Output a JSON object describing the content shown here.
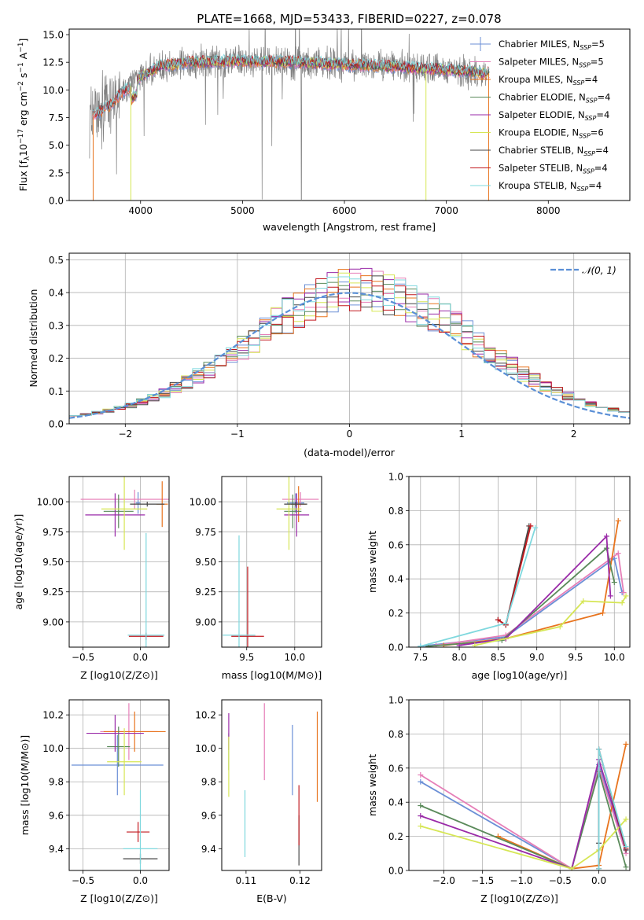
{
  "figure_title": "PLATE=1668, MJD=53433, FIBERID=0227, z=0.078",
  "colors": {
    "Chabrier MILES": "#6b8fd6",
    "Salpeter MILES": "#e67fb8",
    "Kroupa MILES": "#e8741e",
    "Chabrier ELODIE": "#5a8a5a",
    "Salpeter ELODIE": "#9a2aa8",
    "Kroupa ELODIE": "#d6e655",
    "Chabrier STELIB": "#444444",
    "Salpeter STELIB": "#c2181e",
    "Kroupa STELIB": "#7fd8de",
    "data": "#808080",
    "gauss": "#5a8fd6"
  },
  "chart_data": [
    {
      "id": "spectrum",
      "type": "line",
      "xlabel": "wavelength [Angstrom, rest frame]",
      "ylabel": "Flux [f_λ 10^−17 erg cm^−2 s^−1 A^−1]",
      "xlim": [
        3300,
        8800
      ],
      "ylim": [
        0,
        15.5
      ],
      "xticks": [
        4000,
        5000,
        6000,
        7000,
        8000
      ],
      "yticks": [
        0.0,
        2.5,
        5.0,
        7.5,
        10.0,
        12.5,
        15.0
      ],
      "ytick_labels": [
        "0.0",
        "2.5",
        "5.0",
        "7.5",
        "10.0",
        "12.5",
        "15.0"
      ],
      "legend_placement": "upper right",
      "legend": [
        {
          "ssp": "Chabrier MILES",
          "n": "5"
        },
        {
          "ssp": "Salpeter MILES",
          "n": "5"
        },
        {
          "ssp": "Kroupa MILES",
          "n": "4"
        },
        {
          "ssp": "Chabrier ELODIE",
          "n": "4"
        },
        {
          "ssp": "Salpeter ELODIE",
          "n": "4"
        },
        {
          "ssp": "Kroupa ELODIE",
          "n": "6"
        },
        {
          "ssp": "Chabrier STELIB",
          "n": "4"
        },
        {
          "ssp": "Salpeter STELIB",
          "n": "4"
        },
        {
          "ssp": "Kroupa STELIB",
          "n": "4"
        }
      ],
      "data_envelope": [
        [
          3500,
          7.4
        ],
        [
          3600,
          8.0
        ],
        [
          3700,
          8.6
        ],
        [
          3800,
          9.6
        ],
        [
          3900,
          10.3
        ],
        [
          4000,
          11.2
        ],
        [
          4200,
          12.2
        ],
        [
          4500,
          12.5
        ],
        [
          5000,
          12.6
        ],
        [
          5500,
          12.5
        ],
        [
          6000,
          12.3
        ],
        [
          6500,
          12.1
        ],
        [
          7000,
          11.8
        ],
        [
          7400,
          11.5
        ]
      ]
    },
    {
      "id": "residuals",
      "type": "step",
      "xlabel": "(data-model)/error",
      "ylabel": "Normed distribution",
      "xlim": [
        -2.5,
        2.5
      ],
      "ylim": [
        0,
        0.52
      ],
      "grid": true,
      "xticks": [
        -2,
        -1,
        0,
        1,
        2
      ],
      "xtick_labels": [
        "−2",
        "−1",
        "0",
        "1",
        "2"
      ],
      "yticks": [
        0.0,
        0.1,
        0.2,
        0.3,
        0.4,
        0.5
      ],
      "ytick_labels": [
        "0.0",
        "0.1",
        "0.2",
        "0.3",
        "0.4",
        "0.5"
      ],
      "legend": [
        {
          "label": "𝒩(0, 1)"
        }
      ],
      "legend_placement": "upper right",
      "bin_width": 0.1
    },
    {
      "id": "age_vs_Z",
      "type": "errorbar",
      "xlabel": "Z [log10(Z/Z⊙)]",
      "ylabel": "age  [log10(age/yr)]",
      "xlim": [
        -0.62,
        0.25
      ],
      "ylim": [
        8.79,
        10.21
      ],
      "grid": true,
      "xticks": [
        -0.5,
        0.0
      ],
      "xtick_labels": [
        "−0.5",
        "0.0"
      ],
      "yticks": [
        9.0,
        9.25,
        9.5,
        9.75,
        10.0
      ],
      "ytick_labels": [
        "9.00",
        "9.25",
        "9.50",
        "9.75",
        "10.00"
      ],
      "points": [
        {
          "ssp": "Chabrier MILES",
          "x": -0.02,
          "xerr": 0.02,
          "y": 9.99,
          "yerr": 0.09
        },
        {
          "ssp": "Salpeter MILES",
          "x": -0.05,
          "xerr": 0.47,
          "y": 10.02,
          "yerr": 0.08
        },
        {
          "ssp": "Kroupa MILES",
          "x": 0.19,
          "xerr": 0.05,
          "y": 9.98,
          "yerr": 0.19
        },
        {
          "ssp": "Chabrier ELODIE",
          "x": -0.19,
          "xerr": 0.13,
          "y": 9.92,
          "yerr": 0.14
        },
        {
          "ssp": "Salpeter ELODIE",
          "x": -0.22,
          "xerr": 0.26,
          "y": 9.89,
          "yerr": 0.18
        },
        {
          "ssp": "Kroupa ELODIE",
          "x": -0.14,
          "xerr": 0.2,
          "y": 9.94,
          "yerr": 0.34
        },
        {
          "ssp": "Chabrier STELIB",
          "x": 0.06,
          "xerr": 0.15,
          "y": 9.98,
          "yerr": 0.02
        },
        {
          "ssp": "Salpeter STELIB",
          "x": 0.05,
          "xerr": 0.15,
          "y": 8.88,
          "yerr": 0.03
        },
        {
          "ssp": "Kroupa STELIB",
          "x": 0.05,
          "xerr": 0.16,
          "y": 8.89,
          "yerr": 0.85
        }
      ]
    },
    {
      "id": "age_vs_mass",
      "type": "errorbar",
      "xlabel": "mass [log10(M/M⊙)]",
      "ylabel": "",
      "xlim": [
        9.24,
        10.28
      ],
      "ylim": [
        8.79,
        10.21
      ],
      "grid": true,
      "xticks": [
        9.5,
        10.0
      ],
      "xtick_labels": [
        "9.5",
        "10.0"
      ],
      "yticks": [
        9.0,
        9.25,
        9.5,
        9.75,
        10.0
      ],
      "ytick_labels": [
        "9.00",
        "9.25",
        "9.50",
        "9.75",
        "10.00"
      ],
      "points": [
        {
          "ssp": "Chabrier MILES",
          "x": 10.01,
          "xerr": 0.09,
          "y": 9.99,
          "yerr": 0.08
        },
        {
          "ssp": "Salpeter MILES",
          "x": 10.06,
          "xerr": 0.19,
          "y": 10.02,
          "yerr": 0.06
        },
        {
          "ssp": "Kroupa MILES",
          "x": 10.04,
          "xerr": 0.08,
          "y": 9.98,
          "yerr": 0.15
        },
        {
          "ssp": "Chabrier ELODIE",
          "x": 9.98,
          "xerr": 0.09,
          "y": 9.92,
          "yerr": 0.14
        },
        {
          "ssp": "Salpeter ELODIE",
          "x": 10.02,
          "xerr": 0.13,
          "y": 9.89,
          "yerr": 0.18
        },
        {
          "ssp": "Kroupa ELODIE",
          "x": 9.94,
          "xerr": 0.13,
          "y": 9.94,
          "yerr": 0.34
        },
        {
          "ssp": "Chabrier STELIB",
          "x": 10.01,
          "xerr": 0.12,
          "y": 9.98,
          "yerr": 0.02
        },
        {
          "ssp": "Salpeter STELIB",
          "x": 9.51,
          "xerr": 0.17,
          "y": 8.88,
          "yerr": 0.58
        },
        {
          "ssp": "Kroupa STELIB",
          "x": 9.42,
          "xerr": 0.17,
          "y": 8.89,
          "yerr": 0.83
        }
      ]
    },
    {
      "id": "weights_vs_age",
      "type": "line",
      "xlabel": "age  [log10(age/yr)]",
      "ylabel": "mass weight",
      "xlim": [
        7.35,
        10.2
      ],
      "ylim": [
        0,
        1.0
      ],
      "grid": true,
      "xticks": [
        7.5,
        8.0,
        8.5,
        9.0,
        9.5,
        10.0
      ],
      "xtick_labels": [
        "7.5",
        "8.0",
        "8.5",
        "9.0",
        "9.5",
        "10.0"
      ],
      "yticks": [
        0.0,
        0.2,
        0.4,
        0.6,
        0.8,
        1.0
      ],
      "ytick_labels": [
        "0.0",
        "0.2",
        "0.4",
        "0.6",
        "0.8",
        "1.0"
      ],
      "series": [
        {
          "ssp": "Chabrier MILES",
          "x": [
            7.5,
            8.6,
            10.0,
            10.1
          ],
          "y": [
            0.005,
            0.06,
            0.52,
            0.32
          ]
        },
        {
          "ssp": "Salpeter MILES",
          "x": [
            7.7,
            8.6,
            10.05,
            10.12
          ],
          "y": [
            0.01,
            0.07,
            0.55,
            0.32
          ]
        },
        {
          "ssp": "Kroupa MILES",
          "x": [
            7.8,
            8.6,
            9.85,
            10.05
          ],
          "y": [
            0.01,
            0.05,
            0.2,
            0.74
          ]
        },
        {
          "ssp": "Chabrier ELODIE",
          "x": [
            7.6,
            8.55,
            9.9,
            10.0
          ],
          "y": [
            0.005,
            0.04,
            0.58,
            0.38
          ]
        },
        {
          "ssp": "Salpeter ELODIE",
          "x": [
            8.0,
            8.6,
            9.9,
            9.95
          ],
          "y": [
            0.01,
            0.05,
            0.65,
            0.3
          ]
        },
        {
          "ssp": "Kroupa ELODIE",
          "x": [
            8.2,
            9.3,
            9.6,
            10.1,
            10.15
          ],
          "y": [
            0.01,
            0.12,
            0.27,
            0.26,
            0.3
          ]
        },
        {
          "ssp": "Chabrier STELIB",
          "x": [
            8.5,
            8.6,
            8.9
          ],
          "y": [
            0.16,
            0.13,
            0.71
          ]
        },
        {
          "ssp": "Salpeter STELIB",
          "x": [
            8.5,
            8.6,
            8.92
          ],
          "y": [
            0.16,
            0.13,
            0.71
          ]
        },
        {
          "ssp": "Kroupa STELIB",
          "x": [
            7.5,
            8.6,
            8.98
          ],
          "y": [
            0.005,
            0.14,
            0.7
          ]
        }
      ]
    },
    {
      "id": "mass_vs_Z",
      "type": "errorbar",
      "xlabel": "Z [log10(Z/Z⊙)]",
      "ylabel": "mass [log10(M/M⊙)]",
      "xlim": [
        -0.62,
        0.25
      ],
      "ylim": [
        9.27,
        10.29
      ],
      "grid": true,
      "xticks": [
        -0.5,
        0.0
      ],
      "xtick_labels": [
        "−0.5",
        "0.0"
      ],
      "yticks": [
        9.4,
        9.6,
        9.8,
        10.0,
        10.2
      ],
      "ytick_labels": [
        "9.4",
        "9.6",
        "9.8",
        "10.0",
        "10.2"
      ],
      "points": [
        {
          "ssp": "Chabrier MILES",
          "x": -0.2,
          "xerr": 0.4,
          "y": 9.9,
          "yerr": 0.18
        },
        {
          "ssp": "Salpeter MILES",
          "x": -0.1,
          "xerr": 0.25,
          "y": 10.1,
          "yerr": 0.17
        },
        {
          "ssp": "Kroupa MILES",
          "x": -0.05,
          "xerr": 0.27,
          "y": 10.1,
          "yerr": 0.12
        },
        {
          "ssp": "Chabrier ELODIE",
          "x": -0.19,
          "xerr": 0.1,
          "y": 10.01,
          "yerr": 0.12
        },
        {
          "ssp": "Salpeter ELODIE",
          "x": -0.22,
          "xerr": 0.25,
          "y": 10.09,
          "yerr": 0.11
        },
        {
          "ssp": "Kroupa ELODIE",
          "x": -0.14,
          "xerr": 0.15,
          "y": 9.92,
          "yerr": 0.2
        },
        {
          "ssp": "Chabrier STELIB",
          "x": 0.0,
          "xerr": 0.15,
          "y": 9.34,
          "yerr": 0.03
        },
        {
          "ssp": "Salpeter STELIB",
          "x": -0.02,
          "xerr": 0.1,
          "y": 9.5,
          "yerr": 0.06
        },
        {
          "ssp": "Kroupa STELIB",
          "x": 0.0,
          "xerr": 0.15,
          "y": 9.4,
          "yerr": 0.35
        }
      ]
    },
    {
      "id": "mass_vs_EBV",
      "type": "errorbar",
      "xlabel": "E(B-V)",
      "ylabel": "",
      "xlim": [
        0.1055,
        0.124
      ],
      "ylim": [
        9.27,
        10.29
      ],
      "grid": false,
      "xticks": [
        0.11,
        0.12
      ],
      "xtick_labels": [
        "0.11",
        "0.12"
      ],
      "yticks": [
        9.4,
        9.6,
        9.8,
        10.0,
        10.2
      ],
      "ytick_labels": [
        "9.4",
        "9.6",
        "9.8",
        "10.0",
        "10.2"
      ],
      "points": [
        {
          "ssp": "Chabrier MILES",
          "x": 0.1186,
          "y": 9.93,
          "yerr": 0.21
        },
        {
          "ssp": "Salpeter MILES",
          "x": 0.1134,
          "y": 10.04,
          "yerr": 0.23
        },
        {
          "ssp": "Kroupa MILES",
          "x": 0.1232,
          "y": 9.95,
          "yerr": 0.27
        },
        {
          "ssp": "Chabrier ELODIE",
          "x": 0.1068,
          "y": 9.98,
          "yerr": 0.11
        },
        {
          "ssp": "Salpeter ELODIE",
          "x": 0.1068,
          "y": 10.1,
          "yerr": 0.11
        },
        {
          "ssp": "Kroupa ELODIE",
          "x": 0.1068,
          "y": 9.89,
          "yerr": 0.18
        },
        {
          "ssp": "Chabrier STELIB",
          "x": 0.1198,
          "y": 9.45,
          "yerr": 0.15
        },
        {
          "ssp": "Salpeter STELIB",
          "x": 0.1198,
          "y": 9.6,
          "yerr": 0.18
        },
        {
          "ssp": "Kroupa STELIB",
          "x": 0.1098,
          "y": 9.55,
          "yerr": 0.2
        }
      ]
    },
    {
      "id": "weights_vs_Z",
      "type": "line",
      "xlabel": "Z [log10(Z/Z⊙)]",
      "ylabel": "mass weight",
      "xlim": [
        -2.45,
        0.4
      ],
      "ylim": [
        0,
        1.0
      ],
      "grid": true,
      "xticks": [
        -2.0,
        -1.5,
        -1.0,
        -0.5,
        0.0
      ],
      "xtick_labels": [
        "−2.0",
        "−1.5",
        "−1.0",
        "−0.5",
        "0.0"
      ],
      "yticks": [
        0.0,
        0.2,
        0.4,
        0.6,
        0.8,
        1.0
      ],
      "ytick_labels": [
        "0.0",
        "0.2",
        "0.4",
        "0.6",
        "0.8",
        "1.0"
      ],
      "series": [
        {
          "ssp": "Chabrier MILES",
          "x": [
            -2.3,
            -0.35,
            0.0,
            0.35
          ],
          "y": [
            0.52,
            0.01,
            0.62,
            0.12
          ]
        },
        {
          "ssp": "Salpeter MILES",
          "x": [
            -2.3,
            -0.35,
            0.0,
            0.35
          ],
          "y": [
            0.56,
            0.01,
            0.6,
            0.1
          ]
        },
        {
          "ssp": "Kroupa MILES",
          "x": [
            -1.3,
            -0.35,
            0.0,
            0.35
          ],
          "y": [
            0.2,
            0.01,
            0.03,
            0.74
          ]
        },
        {
          "ssp": "Chabrier ELODIE",
          "x": [
            -2.3,
            -0.35,
            0.0,
            0.35
          ],
          "y": [
            0.38,
            0.01,
            0.58,
            0.02
          ]
        },
        {
          "ssp": "Salpeter ELODIE",
          "x": [
            -2.3,
            -0.35,
            0.0,
            0.35
          ],
          "y": [
            0.32,
            0.01,
            0.65,
            0.12
          ]
        },
        {
          "ssp": "Kroupa ELODIE",
          "x": [
            -2.3,
            -0.35,
            0.0,
            0.35
          ],
          "y": [
            0.26,
            0.01,
            0.12,
            0.3
          ]
        },
        {
          "ssp": "Chabrier STELIB",
          "x": [
            0.0,
            0.0,
            0.35
          ],
          "y": [
            0.16,
            0.71,
            0.12
          ]
        },
        {
          "ssp": "Salpeter STELIB",
          "x": [
            0.0,
            0.0,
            0.35
          ],
          "y": [
            0.01,
            0.71,
            0.13
          ]
        },
        {
          "ssp": "Kroupa STELIB",
          "x": [
            0.0,
            0.0,
            0.35
          ],
          "y": [
            0.01,
            0.71,
            0.14
          ]
        }
      ]
    }
  ]
}
